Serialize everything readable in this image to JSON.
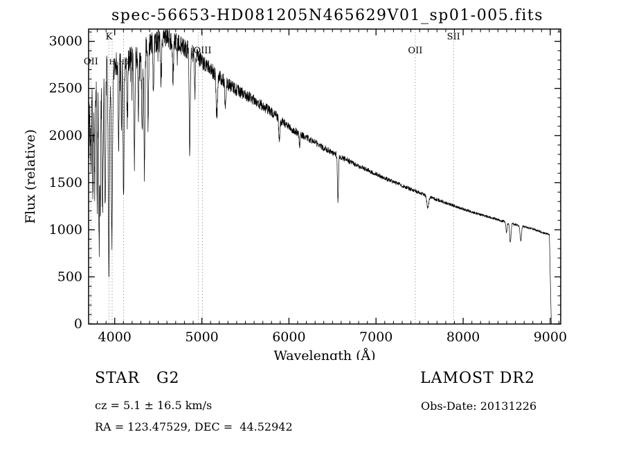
{
  "chart_data": {
    "type": "line",
    "title": "spec-56653-HD081205N465629V01_sp01-005.fits",
    "xlabel": "Wavelength (Å)",
    "ylabel": "Flux (relative)",
    "xlim": [
      3700,
      9120
    ],
    "ylim": [
      0,
      3130
    ],
    "xticks": [
      4000,
      5000,
      6000,
      7000,
      8000,
      9000
    ],
    "yticks": [
      0,
      500,
      1000,
      1500,
      2000,
      2500,
      3000
    ],
    "grid": false,
    "legend": "none",
    "continuum": [
      [
        3700,
        2000
      ],
      [
        3720,
        2350
      ],
      [
        3760,
        2600
      ],
      [
        3800,
        2650
      ],
      [
        3840,
        2680
      ],
      [
        3880,
        2650
      ],
      [
        3920,
        2680
      ],
      [
        3960,
        2700
      ],
      [
        4000,
        2760
      ],
      [
        4060,
        2780
      ],
      [
        4120,
        2800
      ],
      [
        4200,
        2820
      ],
      [
        4280,
        2860
      ],
      [
        4360,
        2920
      ],
      [
        4440,
        2980
      ],
      [
        4520,
        3030
      ],
      [
        4600,
        3040
      ],
      [
        4680,
        3000
      ],
      [
        4760,
        2950
      ],
      [
        4840,
        2910
      ],
      [
        4920,
        2860
      ],
      [
        5000,
        2790
      ],
      [
        5080,
        2720
      ],
      [
        5160,
        2650
      ],
      [
        5240,
        2590
      ],
      [
        5320,
        2530
      ],
      [
        5400,
        2480
      ],
      [
        5480,
        2440
      ],
      [
        5560,
        2400
      ],
      [
        5640,
        2350
      ],
      [
        5720,
        2300
      ],
      [
        5800,
        2250
      ],
      [
        5880,
        2190
      ],
      [
        5960,
        2120
      ],
      [
        6040,
        2060
      ],
      [
        6120,
        2020
      ],
      [
        6200,
        1980
      ],
      [
        6280,
        1935
      ],
      [
        6360,
        1890
      ],
      [
        6440,
        1850
      ],
      [
        6520,
        1810
      ],
      [
        6600,
        1770
      ],
      [
        6680,
        1730
      ],
      [
        6760,
        1695
      ],
      [
        6840,
        1660
      ],
      [
        6920,
        1625
      ],
      [
        7000,
        1590
      ],
      [
        7100,
        1548
      ],
      [
        7200,
        1508
      ],
      [
        7300,
        1468
      ],
      [
        7400,
        1430
      ],
      [
        7500,
        1392
      ],
      [
        7600,
        1355
      ],
      [
        7700,
        1320
      ],
      [
        7800,
        1285
      ],
      [
        7900,
        1252
      ],
      [
        8000,
        1220
      ],
      [
        8100,
        1190
      ],
      [
        8200,
        1162
      ],
      [
        8300,
        1134
      ],
      [
        8400,
        1107
      ],
      [
        8500,
        1080
      ],
      [
        8600,
        1055
      ],
      [
        8700,
        1032
      ],
      [
        8800,
        1010
      ],
      [
        8900,
        975
      ],
      [
        9000,
        945
      ],
      [
        9015,
        940
      ]
    ],
    "absorption_lines": [
      [
        3727,
        0.28,
        6
      ],
      [
        3750,
        0.45,
        5
      ],
      [
        3770,
        0.42,
        5
      ],
      [
        3798,
        0.52,
        5
      ],
      [
        3820,
        0.68,
        6
      ],
      [
        3835,
        0.48,
        5
      ],
      [
        3860,
        0.58,
        6
      ],
      [
        3889,
        0.56,
        6
      ],
      [
        3933,
        0.77,
        7
      ],
      [
        3968,
        0.66,
        7
      ],
      [
        4045,
        0.3,
        5
      ],
      [
        4077,
        0.25,
        4
      ],
      [
        4101,
        0.5,
        6
      ],
      [
        4144,
        0.22,
        5
      ],
      [
        4226,
        0.38,
        6
      ],
      [
        4271,
        0.22,
        5
      ],
      [
        4315,
        0.28,
        6
      ],
      [
        4340,
        0.44,
        6
      ],
      [
        4383,
        0.28,
        5
      ],
      [
        4444,
        0.18,
        5
      ],
      [
        4530,
        0.15,
        6
      ],
      [
        4668,
        0.15,
        5
      ],
      [
        4861,
        0.4,
        6
      ],
      [
        4920,
        0.15,
        5
      ],
      [
        5172,
        0.16,
        8
      ],
      [
        5270,
        0.12,
        6
      ],
      [
        5890,
        0.11,
        7
      ],
      [
        6122,
        0.06,
        6
      ],
      [
        6563,
        0.27,
        6
      ],
      [
        7594,
        0.09,
        11
      ],
      [
        8498,
        0.1,
        7
      ],
      [
        8542,
        0.19,
        8
      ],
      [
        8662,
        0.16,
        8
      ]
    ],
    "noise_profile": [
      [
        3700,
        420
      ],
      [
        3780,
        260
      ],
      [
        4000,
        150
      ],
      [
        4600,
        120
      ],
      [
        5000,
        85
      ],
      [
        5600,
        60
      ],
      [
        6200,
        38
      ],
      [
        7000,
        24
      ],
      [
        8000,
        15
      ],
      [
        9020,
        11
      ]
    ],
    "cutoff": {
      "start": 8990,
      "end": 9012
    },
    "spectral_markers": [
      {
        "wavelength": 3727,
        "label": "OII",
        "level": "low",
        "small": false
      },
      {
        "wavelength": 3933,
        "label": "K",
        "level": "high",
        "small": false
      },
      {
        "wavelength": 3970,
        "label": "H",
        "level": "low",
        "small": true
      },
      {
        "wavelength": 4101,
        "label": "Hδ",
        "level": "low",
        "small": true
      },
      {
        "wavelength": 4959,
        "label": "",
        "level": "mid",
        "small": false
      },
      {
        "wavelength": 5007,
        "label": "OIII",
        "level": "mid",
        "small": false
      },
      {
        "wavelength": 7450,
        "label": "OII",
        "level": "mid",
        "small": false
      },
      {
        "wavelength": 7890,
        "label": "SII",
        "level": "high",
        "small": false
      }
    ]
  },
  "annotations": {
    "class_label": "STAR   G2",
    "survey": "LAMOST DR2",
    "cz": "cz = 5.1 ± 16.5 km/s",
    "obs_date": "Obs-Date: 20131226",
    "radec": "RA = 123.47529, DEC =  44.52942"
  },
  "colors": {
    "background": "#ffffff",
    "trace": "#000000",
    "marker_line": "#999999"
  }
}
